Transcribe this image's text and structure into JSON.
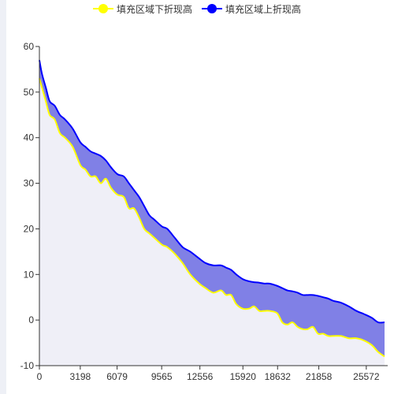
{
  "legend": {
    "items": [
      {
        "label": "填充区域下折现高",
        "color": "#ffff00"
      },
      {
        "label": "填充区域上折现高",
        "color": "#0000ff"
      }
    ]
  },
  "colors": {
    "lower_line": "#ffff00",
    "upper_line": "#0000ff",
    "band_fill": "#8080e6",
    "lower_fill": "#efeff7",
    "axis": "#333333"
  },
  "chart_data": {
    "type": "area",
    "title": "",
    "xlabel": "",
    "ylabel": "",
    "ylim": [
      -10,
      60
    ],
    "xlim": [
      0,
      27000
    ],
    "x_ticks": [
      "0",
      "3198",
      "6079",
      "9565",
      "12556",
      "15920",
      "18632",
      "21858",
      "25572"
    ],
    "y_ticks": [
      "-10",
      "0",
      "10",
      "20",
      "30",
      "40",
      "50",
      "60"
    ],
    "legend_position": "top-center",
    "grid": false,
    "series": [
      {
        "name": "填充区域下折现高",
        "x": [
          0,
          200,
          500,
          800,
          1200,
          1600,
          2000,
          2600,
          3200,
          3600,
          4000,
          4400,
          4800,
          5200,
          5600,
          6100,
          6600,
          7000,
          7400,
          7800,
          8200,
          8600,
          9000,
          9600,
          10000,
          10600,
          11200,
          11800,
          12500,
          13000,
          13600,
          14200,
          14600,
          15000,
          15400,
          15900,
          16400,
          16800,
          17200,
          17600,
          18000,
          18600,
          19000,
          19400,
          19800,
          20200,
          20600,
          21000,
          21400,
          21800,
          22200,
          22600,
          23000,
          23600,
          24200,
          24800,
          25400,
          26000,
          26500,
          27000
        ],
        "values": [
          53,
          51,
          48,
          45,
          44,
          41,
          40,
          38,
          34,
          33,
          31.5,
          31.5,
          30,
          31,
          29,
          27.5,
          27,
          24.5,
          24.5,
          22.5,
          20,
          19,
          18,
          16.5,
          16,
          14.5,
          12.5,
          10,
          8,
          7,
          6,
          6.5,
          5.5,
          5.5,
          3.5,
          2.5,
          2.5,
          3,
          2,
          2,
          2,
          1.5,
          -0.5,
          -1,
          -0.5,
          -1.5,
          -2,
          -2,
          -1.5,
          -3,
          -3,
          -3.5,
          -3.5,
          -3.5,
          -4,
          -4,
          -4.5,
          -5.5,
          -7,
          -8
        ]
      },
      {
        "name": "填充区域上折现高",
        "x": [
          0,
          200,
          500,
          800,
          1200,
          1600,
          2000,
          2600,
          3200,
          3600,
          4000,
          4400,
          4800,
          5200,
          5600,
          6100,
          6600,
          7000,
          7400,
          7800,
          8200,
          8600,
          9000,
          9600,
          10000,
          10600,
          11200,
          11800,
          12500,
          13000,
          13600,
          14200,
          14600,
          15000,
          15400,
          15900,
          16400,
          16800,
          17200,
          17600,
          18000,
          18600,
          19000,
          19400,
          19800,
          20200,
          20600,
          21000,
          21400,
          21800,
          22200,
          22600,
          23000,
          23600,
          24200,
          24800,
          25400,
          26000,
          26500,
          27000
        ],
        "values": [
          57,
          54,
          51,
          48,
          47,
          45,
          44,
          42,
          39,
          38,
          37,
          36.5,
          36,
          35,
          33.5,
          32,
          31.5,
          30,
          28.5,
          27,
          25,
          23,
          22,
          20.5,
          20,
          18,
          16,
          15,
          13.5,
          12.5,
          12,
          12,
          11.5,
          11,
          10,
          9,
          8.5,
          8.3,
          8.2,
          8,
          8,
          7.5,
          7,
          6.5,
          6.3,
          6,
          5.5,
          5.5,
          5.5,
          5.3,
          5,
          4.7,
          4.2,
          3.8,
          3,
          2,
          1.3,
          0.5,
          -0.5,
          -0.5
        ]
      }
    ]
  }
}
